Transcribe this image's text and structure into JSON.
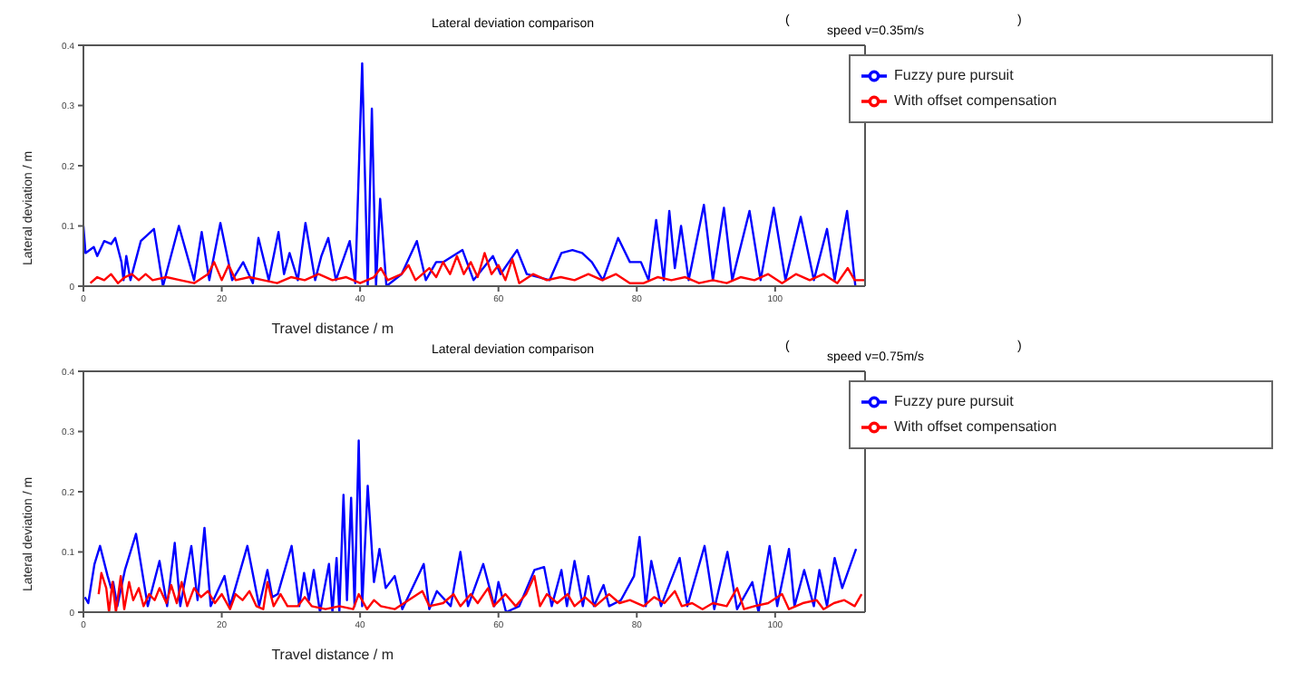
{
  "chart_data": [
    {
      "type": "line",
      "title": "Lateral deviation comparison",
      "subtitle": "speed v=0.35m/s",
      "annotations": [
        "(",
        ")"
      ],
      "xlabel": "Travel distance / m",
      "ylabel": "Lateral deviation / m",
      "xlim": [
        0,
        113
      ],
      "xticks": [
        0,
        20,
        40,
        60,
        80,
        100
      ],
      "ylim": [
        0,
        0.4
      ],
      "yticks": [
        0,
        0.1,
        0.2,
        0.3,
        0.4
      ],
      "legend": "top right",
      "series": [
        {
          "name": "Fuzzy pure pursuit",
          "color": "#0000ff",
          "x": [
            0,
            0.3,
            1.5,
            2,
            3,
            4,
            4.6,
            5.5,
            5.8,
            6.2,
            6.8,
            8.3,
            10.2,
            11.5,
            13.8,
            16,
            17.1,
            18.2,
            19.8,
            21.5,
            23.1,
            24.5,
            25.3,
            26.8,
            28.2,
            29,
            29.8,
            31,
            32.1,
            33.5,
            34.4,
            35.4,
            36.5,
            38.5,
            39.3,
            40.3,
            41.1,
            41.7,
            42.3,
            42.9,
            43.8,
            46,
            48.2,
            49.5,
            51,
            52,
            54.8,
            56.4,
            59.2,
            60.3,
            62.7,
            64.1,
            67.4,
            69.1,
            70.7,
            72.1,
            73.5,
            75.1,
            77.3,
            79,
            80.6,
            81.7,
            82.8,
            83.9,
            84.7,
            85.5,
            86.4,
            87.5,
            89.7,
            91,
            92.6,
            93.8,
            96.3,
            97.9,
            99.8,
            101.5,
            103.7,
            105.6,
            107.5,
            108.6,
            110.4,
            111.6
          ],
          "values": [
            0.1,
            0.055,
            0.065,
            0.05,
            0.075,
            0.07,
            0.08,
            0.04,
            0.01,
            0.05,
            0.01,
            0.075,
            0.095,
            0.0,
            0.1,
            0.01,
            0.09,
            0.01,
            0.105,
            0.01,
            0.04,
            0.005,
            0.08,
            0.01,
            0.09,
            0.02,
            0.055,
            0.01,
            0.105,
            0.01,
            0.05,
            0.08,
            0.01,
            0.075,
            0.005,
            0.37,
            0.0,
            0.295,
            0.0,
            0.145,
            0.0,
            0.02,
            0.075,
            0.01,
            0.04,
            0.04,
            0.06,
            0.01,
            0.05,
            0.02,
            0.06,
            0.02,
            0.01,
            0.055,
            0.06,
            0.055,
            0.04,
            0.01,
            0.08,
            0.04,
            0.04,
            0.01,
            0.11,
            0.01,
            0.125,
            0.03,
            0.1,
            0.01,
            0.135,
            0.01,
            0.13,
            0.01,
            0.125,
            0.01,
            0.13,
            0.01,
            0.115,
            0.01,
            0.095,
            0.01,
            0.125,
            0.0
          ]
        },
        {
          "name": "With offset compensation",
          "color": "#ff0000",
          "x": [
            1,
            2,
            3,
            4,
            5,
            6,
            7,
            8,
            9,
            10,
            12,
            14,
            16,
            18,
            18.9,
            20,
            21,
            22,
            24,
            26,
            28,
            30,
            32,
            34,
            36,
            38,
            40,
            42,
            43,
            44,
            46,
            47,
            48,
            50,
            51,
            52,
            53,
            54,
            55,
            56,
            57,
            58,
            59,
            60,
            61,
            62,
            63,
            65,
            67,
            69,
            71,
            73,
            75,
            77,
            79,
            81,
            83,
            85,
            87,
            89,
            91,
            93,
            95,
            97,
            99,
            101,
            103,
            105,
            107,
            109,
            110.5,
            111.5,
            113
          ],
          "values": [
            0.005,
            0.015,
            0.01,
            0.02,
            0.005,
            0.015,
            0.02,
            0.01,
            0.02,
            0.01,
            0.015,
            0.01,
            0.005,
            0.02,
            0.04,
            0.01,
            0.035,
            0.01,
            0.015,
            0.01,
            0.005,
            0.015,
            0.01,
            0.02,
            0.01,
            0.015,
            0.005,
            0.015,
            0.03,
            0.01,
            0.02,
            0.035,
            0.01,
            0.03,
            0.015,
            0.04,
            0.02,
            0.05,
            0.02,
            0.04,
            0.015,
            0.055,
            0.02,
            0.035,
            0.01,
            0.045,
            0.005,
            0.02,
            0.01,
            0.015,
            0.01,
            0.02,
            0.01,
            0.02,
            0.005,
            0.005,
            0.015,
            0.01,
            0.015,
            0.005,
            0.01,
            0.005,
            0.015,
            0.01,
            0.02,
            0.005,
            0.02,
            0.01,
            0.02,
            0.005,
            0.03,
            0.01,
            0.01
          ]
        }
      ]
    },
    {
      "type": "line",
      "title": "Lateral deviation comparison",
      "subtitle": "speed v=0.75m/s",
      "annotations": [
        "(",
        ")"
      ],
      "xlabel": "Travel distance / m",
      "ylabel": "Lateral deviation / m",
      "xlim": [
        0,
        113
      ],
      "xticks": [
        0,
        20,
        40,
        60,
        80,
        100
      ],
      "ylim": [
        0,
        0.4
      ],
      "yticks": [
        0,
        0.1,
        0.2,
        0.3,
        0.4
      ],
      "legend": "top right",
      "series": [
        {
          "name": "Fuzzy pure pursuit",
          "color": "#0000ff",
          "x": [
            0.2,
            0.7,
            1.6,
            2.4,
            3.5,
            4,
            4.3,
            4.9,
            6,
            7.6,
            9.3,
            11,
            12.1,
            13.2,
            14,
            15.6,
            16.5,
            17.5,
            18.4,
            20.4,
            21.2,
            23.7,
            25.4,
            26.6,
            27.3,
            28.1,
            30.1,
            31.2,
            31.9,
            32.6,
            33.3,
            34.2,
            35.5,
            36,
            36.6,
            37,
            37.6,
            38.1,
            38.7,
            39.2,
            39.8,
            40.3,
            41.1,
            42,
            42.8,
            43.7,
            45,
            46.1,
            49.2,
            50,
            51.1,
            53.1,
            54.5,
            55.6,
            57.8,
            59.4,
            60,
            61.1,
            63,
            65.2,
            66.6,
            67.7,
            69.1,
            69.9,
            71,
            72.2,
            73,
            73.8,
            75.2,
            76,
            77.7,
            79.6,
            80.4,
            81.3,
            82.1,
            83.5,
            86.2,
            87.3,
            89.8,
            91.2,
            93.1,
            94.5,
            96.7,
            97.6,
            99.2,
            100.3,
            102,
            102.8,
            104.2,
            105.6,
            106.4,
            107.5,
            108.6,
            109.7,
            111.7
          ],
          "values": [
            0.025,
            0.015,
            0.08,
            0.11,
            0.06,
            0.04,
            0.05,
            0.01,
            0.07,
            0.13,
            0.01,
            0.085,
            0.01,
            0.115,
            0.01,
            0.11,
            0.02,
            0.14,
            0.01,
            0.06,
            0.01,
            0.11,
            0.01,
            0.07,
            0.025,
            0.03,
            0.11,
            0.01,
            0.065,
            0.02,
            0.07,
            0.0,
            0.08,
            0.0,
            0.09,
            0.0,
            0.195,
            0.02,
            0.19,
            0.01,
            0.285,
            0.01,
            0.21,
            0.05,
            0.105,
            0.04,
            0.06,
            0.005,
            0.08,
            0.005,
            0.035,
            0.01,
            0.1,
            0.01,
            0.08,
            0.01,
            0.05,
            0.0,
            0.01,
            0.07,
            0.075,
            0.01,
            0.07,
            0.01,
            0.085,
            0.01,
            0.06,
            0.01,
            0.045,
            0.01,
            0.02,
            0.06,
            0.125,
            0.01,
            0.085,
            0.01,
            0.09,
            0.01,
            0.11,
            0.005,
            0.1,
            0.005,
            0.05,
            0.0,
            0.11,
            0.01,
            0.105,
            0.01,
            0.07,
            0.01,
            0.07,
            0.01,
            0.09,
            0.04,
            0.105
          ]
        },
        {
          "name": "With offset compensation",
          "color": "#ff0000",
          "x": [
            2.2,
            2.6,
            3.3,
            3.7,
            4.2,
            4.7,
            5.4,
            5.9,
            6.6,
            7.2,
            8,
            8.7,
            9.5,
            10.3,
            11,
            12,
            12.7,
            13.5,
            14.2,
            15,
            16,
            17,
            18,
            19,
            20,
            21.2,
            22,
            23,
            24,
            25,
            26,
            26.6,
            27.5,
            28.5,
            29.5,
            31,
            32,
            33,
            35,
            37,
            39,
            39.8,
            41,
            42,
            43,
            45,
            47,
            49,
            50,
            52,
            53.5,
            54.5,
            56,
            57,
            58.5,
            59.3,
            61,
            62.5,
            64,
            65.2,
            66,
            67,
            68.5,
            70,
            71,
            72.5,
            74,
            76,
            77.5,
            79,
            81,
            82.5,
            84,
            85.5,
            86.5,
            88,
            89.5,
            91,
            93,
            94.5,
            95.5,
            97,
            99,
            101,
            102,
            104,
            106,
            107,
            108.5,
            110,
            111.5,
            112.5
          ],
          "values": [
            0.03,
            0.065,
            0.04,
            0.0,
            0.05,
            0.0,
            0.06,
            0.005,
            0.05,
            0.02,
            0.04,
            0.01,
            0.03,
            0.02,
            0.04,
            0.015,
            0.045,
            0.015,
            0.05,
            0.01,
            0.04,
            0.025,
            0.035,
            0.015,
            0.03,
            0.005,
            0.03,
            0.02,
            0.035,
            0.01,
            0.005,
            0.05,
            0.01,
            0.03,
            0.01,
            0.01,
            0.025,
            0.01,
            0.005,
            0.01,
            0.005,
            0.03,
            0.005,
            0.02,
            0.01,
            0.005,
            0.02,
            0.035,
            0.01,
            0.015,
            0.03,
            0.01,
            0.03,
            0.015,
            0.04,
            0.01,
            0.03,
            0.01,
            0.03,
            0.06,
            0.01,
            0.03,
            0.015,
            0.03,
            0.01,
            0.025,
            0.01,
            0.03,
            0.015,
            0.02,
            0.01,
            0.025,
            0.015,
            0.035,
            0.01,
            0.015,
            0.005,
            0.015,
            0.01,
            0.04,
            0.005,
            0.01,
            0.015,
            0.03,
            0.005,
            0.015,
            0.02,
            0.005,
            0.015,
            0.02,
            0.01,
            0.03
          ]
        }
      ]
    }
  ]
}
